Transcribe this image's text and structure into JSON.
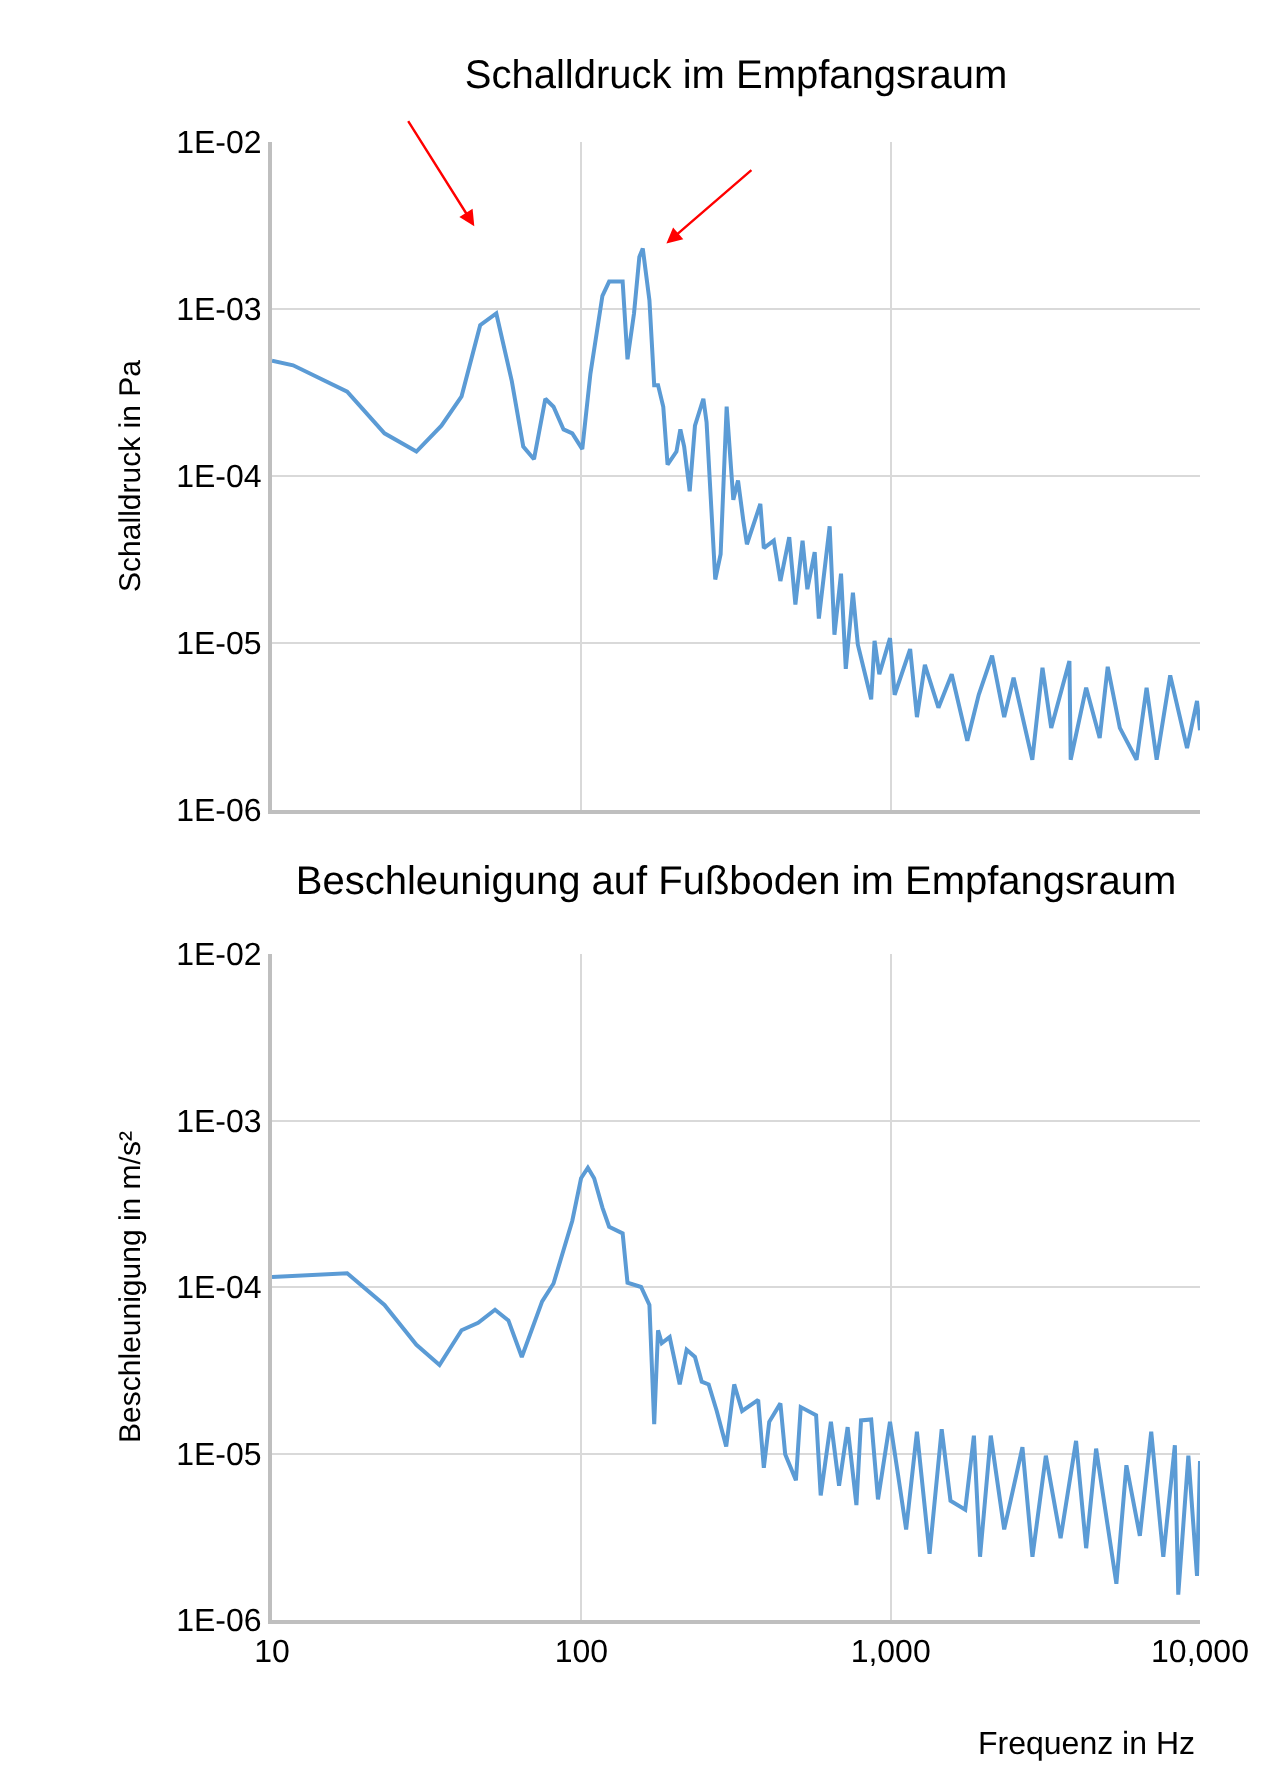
{
  "chart_data": [
    {
      "type": "line",
      "title": "Schalldruck im Empfangsraum",
      "ylabel": "Schalldruck in Pa",
      "log": "xy",
      "grid": true,
      "tick_labels": "y",
      "marker": "none",
      "line_style": "solid",
      "xlim": [
        10,
        10000
      ],
      "xticks": [
        {
          "value": 10,
          "label": null
        },
        {
          "value": 100,
          "label": null
        },
        {
          "value": 1000,
          "label": null
        },
        {
          "value": 10000,
          "label": null
        }
      ],
      "ylim": [
        1e-06,
        0.01
      ],
      "yticks": [
        {
          "value": 0.01,
          "label": "1E-02"
        },
        {
          "value": 0.001,
          "label": "1E-03"
        },
        {
          "value": 0.0001,
          "label": "1E-04"
        },
        {
          "value": 1e-05,
          "label": "1E-05"
        },
        {
          "value": 1e-06,
          "label": "1E-06"
        }
      ],
      "x": [
        10,
        11.7,
        17.5,
        23.1,
        29.3,
        35.3,
        41,
        47.1,
        53.1,
        59.6,
        64.9,
        70.3,
        76.5,
        81.3,
        87.6,
        93.5,
        100.7,
        107,
        117,
        123,
        136,
        141,
        148,
        154,
        158,
        166,
        172,
        177,
        184,
        190,
        203,
        209,
        215,
        224,
        233,
        248,
        254,
        271,
        282,
        295,
        310,
        321,
        334,
        343,
        379,
        389,
        419,
        440,
        470,
        492,
        519,
        538,
        568,
        586,
        635,
        658,
        691,
        716,
        755,
        783,
        865,
        887,
        919,
        995,
        1030,
        1156,
        1216,
        1290,
        1427,
        1575,
        1769,
        1926,
        2127,
        2328,
        2497,
        2870,
        3096,
        3304,
        3783,
        3819,
        4285,
        4740,
        5031,
        5506,
        6237,
        6720,
        7244,
        8011,
        9080,
        9780,
        10000
      ],
      "series": [
        {
          "color": "#5b9bd5",
          "values": [
            0.00049,
            0.00046,
            0.00032,
            0.00018,
            0.00014,
            0.0002,
            0.0003,
            0.0008,
            0.00094,
            0.00037,
            0.00015,
            0.000126,
            0.00029,
            0.00026,
            0.00019,
            0.00018,
            0.000145,
            0.00041,
            0.0012,
            0.00146,
            0.00146,
            0.0005,
            0.00094,
            0.00205,
            0.0023,
            0.00113,
            0.00035,
            0.00035,
            0.00026,
            0.000117,
            0.00014,
            0.00019,
            0.00015,
            8.1e-05,
            0.0002,
            0.00029,
            0.00021,
            2.4e-05,
            3.4e-05,
            0.00026,
            7.2e-05,
            9.4e-05,
            5.4e-05,
            3.9e-05,
            6.8e-05,
            3.7e-05,
            4.1e-05,
            2.35e-05,
            4.3e-05,
            1.7e-05,
            4.1e-05,
            2.1e-05,
            3.5e-05,
            1.4e-05,
            5e-05,
            1.12e-05,
            2.6e-05,
            7e-06,
            2e-05,
            9.8e-06,
            4.6e-06,
            1.03e-05,
            6.5e-06,
            1.07e-05,
            4.9e-06,
            9.2e-06,
            3.6e-06,
            7.4e-06,
            4.1e-06,
            6.5e-06,
            2.6e-06,
            4.9e-06,
            8.4e-06,
            3.6e-06,
            6.2e-06,
            2e-06,
            7.1e-06,
            3.1e-06,
            7.8e-06,
            2e-06,
            5.4e-06,
            2.7e-06,
            7.2e-06,
            3.1e-06,
            2e-06,
            5.4e-06,
            2e-06,
            6.4e-06,
            2.35e-06,
            4.5e-06,
            3e-06
          ]
        }
      ]
    },
    {
      "type": "line",
      "title": "Beschleunigung auf Fußboden im Empfangsraum",
      "ylabel": "Beschleunigung in m/s²",
      "xlabel": "Frequenz in Hz",
      "log": "xy",
      "grid": true,
      "marker": "none",
      "line_style": "solid",
      "xlim": [
        10,
        10000
      ],
      "xticks": [
        10,
        100,
        {
          "value": 1000,
          "label": "1,000"
        },
        {
          "value": 10000,
          "label": "10,000"
        }
      ],
      "ylim": [
        1e-06,
        0.01
      ],
      "yticks": [
        {
          "value": 0.01,
          "label": "1E-02"
        },
        {
          "value": 0.001,
          "label": "1E-03"
        },
        {
          "value": 0.0001,
          "label": "1E-04"
        },
        {
          "value": 1e-05,
          "label": "1E-05"
        },
        {
          "value": 1e-06,
          "label": "1E-06"
        }
      ],
      "x": [
        10,
        17.5,
        23.1,
        29.3,
        34.8,
        41,
        46.4,
        52.6,
        58.1,
        64.2,
        74.7,
        81.3,
        93.5,
        99.8,
        105,
        110,
        117,
        123,
        136,
        141,
        156,
        166,
        172,
        177,
        182,
        193,
        208,
        219,
        233,
        245,
        258,
        274,
        294,
        312,
        331,
        373,
        389,
        405,
        440,
        456,
        494,
        512,
        574,
        594,
        641,
        681,
        726,
        775,
        802,
        865,
        910,
        995,
        1057,
        1122,
        1216,
        1336,
        1462,
        1561,
        1742,
        1858,
        1945,
        2107,
        2328,
        2667,
        2873,
        3174,
        3543,
        3975,
        4285,
        4615,
        5366,
        5782,
        6391,
        6955,
        7609,
        8293,
        8506,
        9170,
        9780,
        10000
      ],
      "series": [
        {
          "color": "#5b9bd5",
          "values": [
            0.000115,
            0.000121,
            7.8e-05,
            4.5e-05,
            3.4e-05,
            5.5e-05,
            6.1e-05,
            7.3e-05,
            6.3e-05,
            3.8e-05,
            8.2e-05,
            0.000105,
            0.00025,
            0.00045,
            0.00052,
            0.00045,
            0.0003,
            0.00023,
            0.00021,
            0.000106,
            0.0001,
            7.8e-05,
            1.5e-05,
            5.5e-05,
            4.6e-05,
            5e-05,
            2.6e-05,
            4.2e-05,
            3.8e-05,
            2.7e-05,
            2.6e-05,
            1.8e-05,
            1.1e-05,
            2.6e-05,
            1.8e-05,
            2.1e-05,
            8.2e-06,
            1.55e-05,
            2e-05,
            9.9e-06,
            6.9e-06,
            1.9e-05,
            1.7e-05,
            5.6e-06,
            1.55e-05,
            6.4e-06,
            1.44e-05,
            4.9e-06,
            1.58e-05,
            1.6e-05,
            5.3e-06,
            1.55e-05,
            7.4e-06,
            3.5e-06,
            1.35e-05,
            2.5e-06,
            1.4e-05,
            5.2e-06,
            4.6e-06,
            1.28e-05,
            2.4e-06,
            1.28e-05,
            3.5e-06,
            1.09e-05,
            2.4e-06,
            9.7e-06,
            3.1e-06,
            1.19e-05,
            2.7e-06,
            1.07e-05,
            1.65e-06,
            8.5e-06,
            3.2e-06,
            1.35e-05,
            2.4e-06,
            1.12e-05,
            1.42e-06,
            9.7e-06,
            1.84e-06,
            9e-06
          ]
        }
      ]
    }
  ]
}
